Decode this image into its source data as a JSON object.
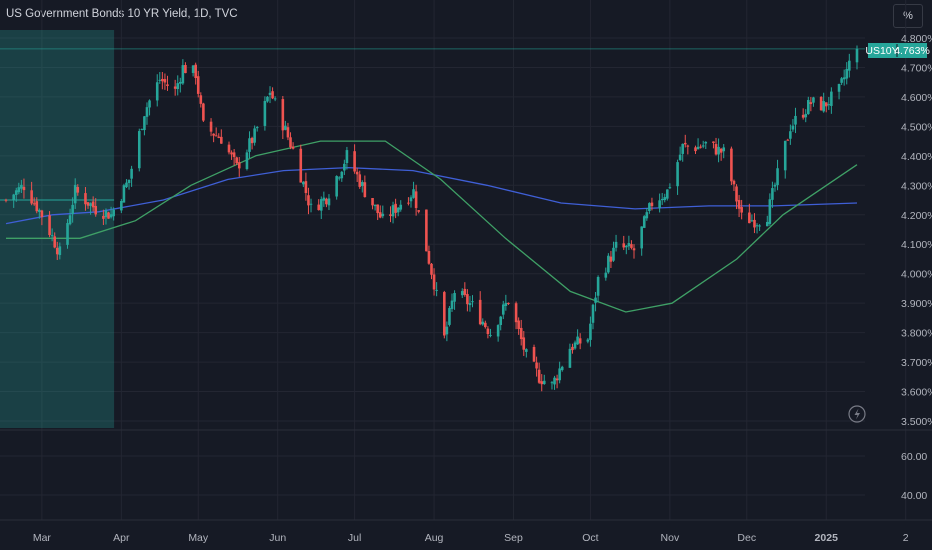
{
  "header": {
    "title": "US Government Bonds 10 YR Yield, 1D, TVC",
    "unit_button": "%"
  },
  "price_tag": {
    "symbol": "US10Y",
    "value": "4.763%"
  },
  "colors": {
    "up": "#26a69a",
    "down": "#ef5350",
    "ma_fast": "#3f5fd6",
    "ma_slow": "#3fa066",
    "highlight": "#26a69a",
    "grid": "#232632"
  },
  "icons": {
    "flash": "lightning-icon"
  },
  "chart_data": {
    "type": "candlestick",
    "ylim": [
      3.5,
      4.8
    ],
    "y_ticks": [
      "3.500%",
      "3.600%",
      "3.700%",
      "3.800%",
      "3.900%",
      "4.000%",
      "4.100%",
      "4.200%",
      "4.300%",
      "4.400%",
      "4.500%",
      "4.600%",
      "4.700%",
      "4.800%"
    ],
    "y_tick_values": [
      3.5,
      3.6,
      3.7,
      3.8,
      3.9,
      4.0,
      4.1,
      4.2,
      4.3,
      4.4,
      4.5,
      4.6,
      4.7,
      4.8
    ],
    "lower_pane_ticks": [
      "60.00",
      "40.00"
    ],
    "x_ticks": [
      "Mar",
      "Apr",
      "May",
      "Jun",
      "Jul",
      "Aug",
      "Sep",
      "Oct",
      "Nov",
      "Dec",
      "2025",
      "2"
    ],
    "last_value": 4.763,
    "anchors": [
      [
        "2024-02-16",
        4.25
      ],
      [
        "2024-02-23",
        4.3
      ],
      [
        "2024-03-01",
        4.2
      ],
      [
        "2024-03-08",
        4.07
      ],
      [
        "2024-03-14",
        4.28
      ],
      [
        "2024-03-22",
        4.22
      ],
      [
        "2024-03-28",
        4.2
      ],
      [
        "2024-04-04",
        4.32
      ],
      [
        "2024-04-10",
        4.55
      ],
      [
        "2024-04-16",
        4.66
      ],
      [
        "2024-04-22",
        4.62
      ],
      [
        "2024-04-25",
        4.7
      ],
      [
        "2024-04-30",
        4.68
      ],
      [
        "2024-05-03",
        4.5
      ],
      [
        "2024-05-10",
        4.46
      ],
      [
        "2024-05-16",
        4.36
      ],
      [
        "2024-05-23",
        4.47
      ],
      [
        "2024-05-29",
        4.62
      ],
      [
        "2024-06-07",
        4.42
      ],
      [
        "2024-06-14",
        4.22
      ],
      [
        "2024-06-20",
        4.26
      ],
      [
        "2024-06-28",
        4.4
      ],
      [
        "2024-07-05",
        4.28
      ],
      [
        "2024-07-12",
        4.18
      ],
      [
        "2024-07-19",
        4.24
      ],
      [
        "2024-07-24",
        4.28
      ],
      [
        "2024-08-01",
        3.97
      ],
      [
        "2024-08-05",
        3.78
      ],
      [
        "2024-08-09",
        3.94
      ],
      [
        "2024-08-16",
        3.89
      ],
      [
        "2024-08-23",
        3.8
      ],
      [
        "2024-08-30",
        3.91
      ],
      [
        "2024-09-06",
        3.72
      ],
      [
        "2024-09-11",
        3.65
      ],
      [
        "2024-09-16",
        3.62
      ],
      [
        "2024-09-23",
        3.75
      ],
      [
        "2024-09-30",
        3.78
      ],
      [
        "2024-10-04",
        3.98
      ],
      [
        "2024-10-11",
        4.09
      ],
      [
        "2024-10-18",
        4.08
      ],
      [
        "2024-10-25",
        4.24
      ],
      [
        "2024-10-31",
        4.28
      ],
      [
        "2024-11-06",
        4.43
      ],
      [
        "2024-11-12",
        4.43
      ],
      [
        "2024-11-15",
        4.44
      ],
      [
        "2024-11-22",
        4.41
      ],
      [
        "2024-11-29",
        4.19
      ],
      [
        "2024-12-05",
        4.18
      ],
      [
        "2024-12-09",
        4.2
      ],
      [
        "2024-12-18",
        4.5
      ],
      [
        "2024-12-26",
        4.58
      ],
      [
        "2024-12-31",
        4.57
      ],
      [
        "2025-01-06",
        4.62
      ],
      [
        "2025-01-13",
        4.78
      ]
    ],
    "ma_fast": [
      [
        0,
        4.17
      ],
      [
        0.05,
        4.2
      ],
      [
        0.1,
        4.21
      ],
      [
        0.17,
        4.25
      ],
      [
        0.24,
        4.32
      ],
      [
        0.3,
        4.35
      ],
      [
        0.37,
        4.36
      ],
      [
        0.44,
        4.35
      ],
      [
        0.52,
        4.3
      ],
      [
        0.6,
        4.24
      ],
      [
        0.68,
        4.22
      ],
      [
        0.76,
        4.23
      ],
      [
        0.83,
        4.23
      ],
      [
        0.92,
        4.24
      ]
    ],
    "ma_slow": [
      [
        0,
        4.12
      ],
      [
        0.08,
        4.12
      ],
      [
        0.14,
        4.18
      ],
      [
        0.2,
        4.3
      ],
      [
        0.27,
        4.4
      ],
      [
        0.34,
        4.45
      ],
      [
        0.41,
        4.45
      ],
      [
        0.47,
        4.32
      ],
      [
        0.54,
        4.12
      ],
      [
        0.61,
        3.94
      ],
      [
        0.67,
        3.87
      ],
      [
        0.72,
        3.9
      ],
      [
        0.79,
        4.05
      ],
      [
        0.84,
        4.2
      ],
      [
        0.92,
        4.37
      ]
    ],
    "highlight_range": [
      "2024-02-16",
      "2024-03-28"
    ]
  }
}
